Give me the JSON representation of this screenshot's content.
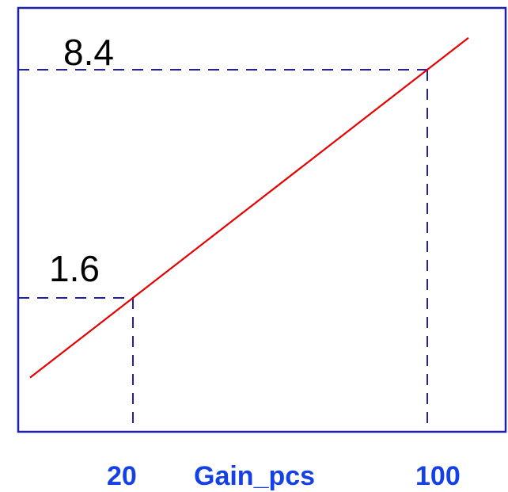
{
  "chart_data": {
    "type": "line",
    "title": "",
    "xlabel": "Gain_pcs",
    "ylabel": "",
    "series": [
      {
        "x": [
          20,
          100
        ],
        "y": [
          1.6,
          8.4
        ]
      }
    ],
    "highlight_points": [
      {
        "x": 20,
        "y": 1.6,
        "x_label": "20",
        "y_label": "1.6"
      },
      {
        "x": 100,
        "y": 8.4,
        "x_label": "100",
        "y_label": "8.4"
      }
    ],
    "grid": false,
    "legend": "none"
  },
  "colors": {
    "frame": "#1f1fa8",
    "line": "#e60000",
    "guide": "#1f1fa8",
    "x_text": "#1440e6",
    "y_text": "#000000"
  }
}
